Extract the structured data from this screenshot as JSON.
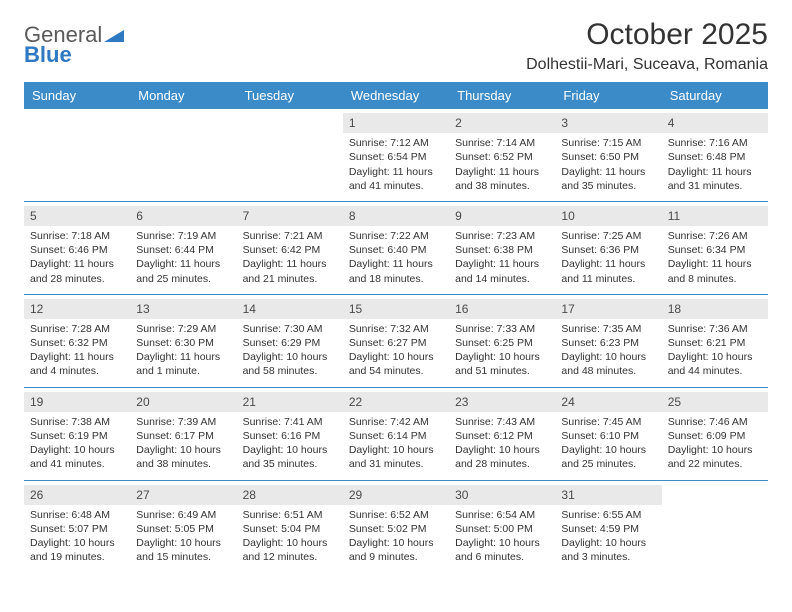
{
  "logo": {
    "line1": "General",
    "line2": "Blue"
  },
  "title": "October 2025",
  "subtitle": "Dolhestii-Mari, Suceava, Romania",
  "colors": {
    "header_bg": "#3b8bc9",
    "header_text": "#ffffff",
    "daynum_bg": "#e9e9e9",
    "row_border": "#3b8bc9",
    "body_text": "#333333",
    "logo_gray": "#6b6b6b",
    "logo_blue": "#2f78c2"
  },
  "day_names": [
    "Sunday",
    "Monday",
    "Tuesday",
    "Wednesday",
    "Thursday",
    "Friday",
    "Saturday"
  ],
  "weeks": [
    [
      {
        "n": "",
        "sr": "",
        "ss": "",
        "dl": ""
      },
      {
        "n": "",
        "sr": "",
        "ss": "",
        "dl": ""
      },
      {
        "n": "",
        "sr": "",
        "ss": "",
        "dl": ""
      },
      {
        "n": "1",
        "sr": "7:12 AM",
        "ss": "6:54 PM",
        "dl": "11 hours and 41 minutes."
      },
      {
        "n": "2",
        "sr": "7:14 AM",
        "ss": "6:52 PM",
        "dl": "11 hours and 38 minutes."
      },
      {
        "n": "3",
        "sr": "7:15 AM",
        "ss": "6:50 PM",
        "dl": "11 hours and 35 minutes."
      },
      {
        "n": "4",
        "sr": "7:16 AM",
        "ss": "6:48 PM",
        "dl": "11 hours and 31 minutes."
      }
    ],
    [
      {
        "n": "5",
        "sr": "7:18 AM",
        "ss": "6:46 PM",
        "dl": "11 hours and 28 minutes."
      },
      {
        "n": "6",
        "sr": "7:19 AM",
        "ss": "6:44 PM",
        "dl": "11 hours and 25 minutes."
      },
      {
        "n": "7",
        "sr": "7:21 AM",
        "ss": "6:42 PM",
        "dl": "11 hours and 21 minutes."
      },
      {
        "n": "8",
        "sr": "7:22 AM",
        "ss": "6:40 PM",
        "dl": "11 hours and 18 minutes."
      },
      {
        "n": "9",
        "sr": "7:23 AM",
        "ss": "6:38 PM",
        "dl": "11 hours and 14 minutes."
      },
      {
        "n": "10",
        "sr": "7:25 AM",
        "ss": "6:36 PM",
        "dl": "11 hours and 11 minutes."
      },
      {
        "n": "11",
        "sr": "7:26 AM",
        "ss": "6:34 PM",
        "dl": "11 hours and 8 minutes."
      }
    ],
    [
      {
        "n": "12",
        "sr": "7:28 AM",
        "ss": "6:32 PM",
        "dl": "11 hours and 4 minutes."
      },
      {
        "n": "13",
        "sr": "7:29 AM",
        "ss": "6:30 PM",
        "dl": "11 hours and 1 minute."
      },
      {
        "n": "14",
        "sr": "7:30 AM",
        "ss": "6:29 PM",
        "dl": "10 hours and 58 minutes."
      },
      {
        "n": "15",
        "sr": "7:32 AM",
        "ss": "6:27 PM",
        "dl": "10 hours and 54 minutes."
      },
      {
        "n": "16",
        "sr": "7:33 AM",
        "ss": "6:25 PM",
        "dl": "10 hours and 51 minutes."
      },
      {
        "n": "17",
        "sr": "7:35 AM",
        "ss": "6:23 PM",
        "dl": "10 hours and 48 minutes."
      },
      {
        "n": "18",
        "sr": "7:36 AM",
        "ss": "6:21 PM",
        "dl": "10 hours and 44 minutes."
      }
    ],
    [
      {
        "n": "19",
        "sr": "7:38 AM",
        "ss": "6:19 PM",
        "dl": "10 hours and 41 minutes."
      },
      {
        "n": "20",
        "sr": "7:39 AM",
        "ss": "6:17 PM",
        "dl": "10 hours and 38 minutes."
      },
      {
        "n": "21",
        "sr": "7:41 AM",
        "ss": "6:16 PM",
        "dl": "10 hours and 35 minutes."
      },
      {
        "n": "22",
        "sr": "7:42 AM",
        "ss": "6:14 PM",
        "dl": "10 hours and 31 minutes."
      },
      {
        "n": "23",
        "sr": "7:43 AM",
        "ss": "6:12 PM",
        "dl": "10 hours and 28 minutes."
      },
      {
        "n": "24",
        "sr": "7:45 AM",
        "ss": "6:10 PM",
        "dl": "10 hours and 25 minutes."
      },
      {
        "n": "25",
        "sr": "7:46 AM",
        "ss": "6:09 PM",
        "dl": "10 hours and 22 minutes."
      }
    ],
    [
      {
        "n": "26",
        "sr": "6:48 AM",
        "ss": "5:07 PM",
        "dl": "10 hours and 19 minutes."
      },
      {
        "n": "27",
        "sr": "6:49 AM",
        "ss": "5:05 PM",
        "dl": "10 hours and 15 minutes."
      },
      {
        "n": "28",
        "sr": "6:51 AM",
        "ss": "5:04 PM",
        "dl": "10 hours and 12 minutes."
      },
      {
        "n": "29",
        "sr": "6:52 AM",
        "ss": "5:02 PM",
        "dl": "10 hours and 9 minutes."
      },
      {
        "n": "30",
        "sr": "6:54 AM",
        "ss": "5:00 PM",
        "dl": "10 hours and 6 minutes."
      },
      {
        "n": "31",
        "sr": "6:55 AM",
        "ss": "4:59 PM",
        "dl": "10 hours and 3 minutes."
      },
      {
        "n": "",
        "sr": "",
        "ss": "",
        "dl": ""
      }
    ]
  ],
  "labels": {
    "sunrise": "Sunrise:",
    "sunset": "Sunset:",
    "daylight": "Daylight:"
  }
}
